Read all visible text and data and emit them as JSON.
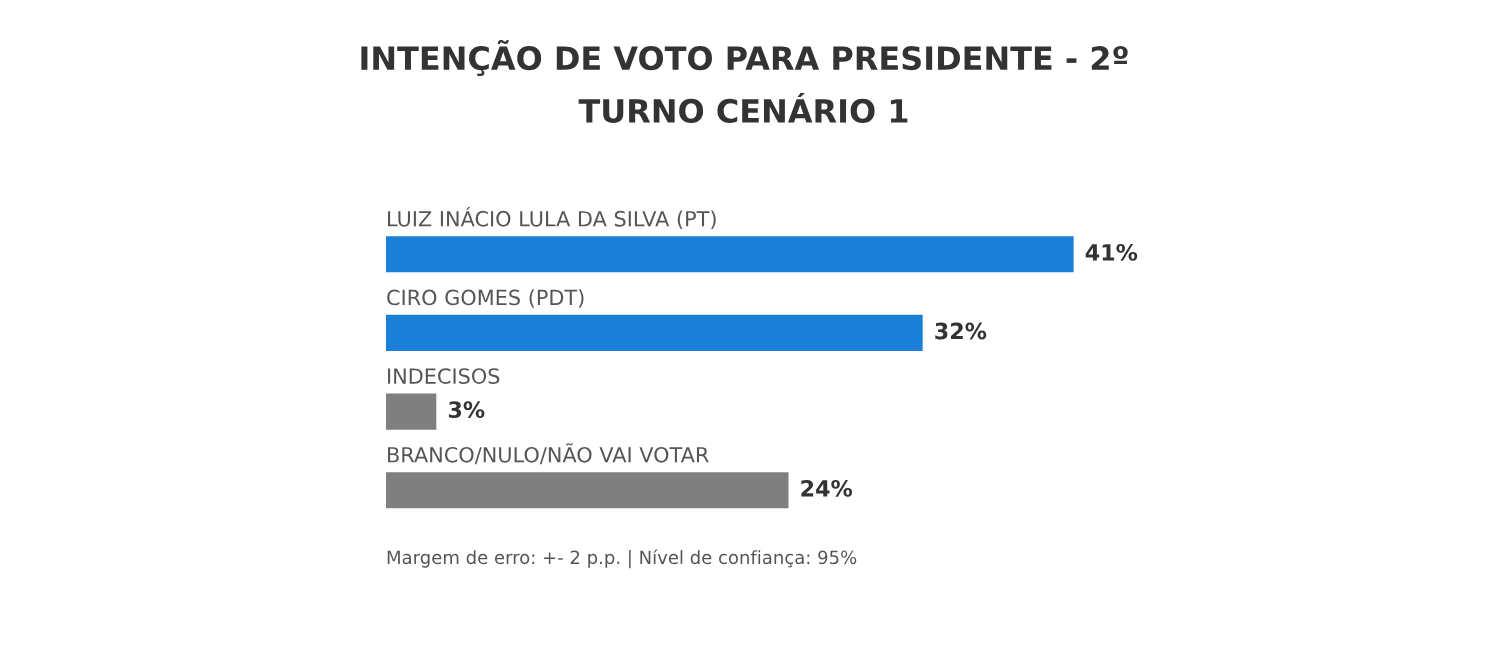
{
  "chart_data": {
    "type": "bar",
    "orientation": "horizontal",
    "title": "INTENÇÃO DE VOTO PARA PRESIDENTE - 2º\nTURNO CENÁRIO 1",
    "categories": [
      "LUIZ INÁCIO LULA DA SILVA (PT)",
      "CIRO GOMES (PDT)",
      "INDECISOS",
      "BRANCO/NULO/NÃO VAI VOTAR"
    ],
    "values": [
      41,
      32,
      3,
      24
    ],
    "colors": [
      "#1a7fd6",
      "#1a7fd6",
      "#7f7f7f",
      "#7f7f7f"
    ],
    "value_labels": [
      "41%",
      "32%",
      "3%",
      "24%"
    ],
    "tick_labels": false,
    "annotations": [
      "Margem de erro: +- 2 p.p. | Nível de confiança: 95%"
    ]
  }
}
